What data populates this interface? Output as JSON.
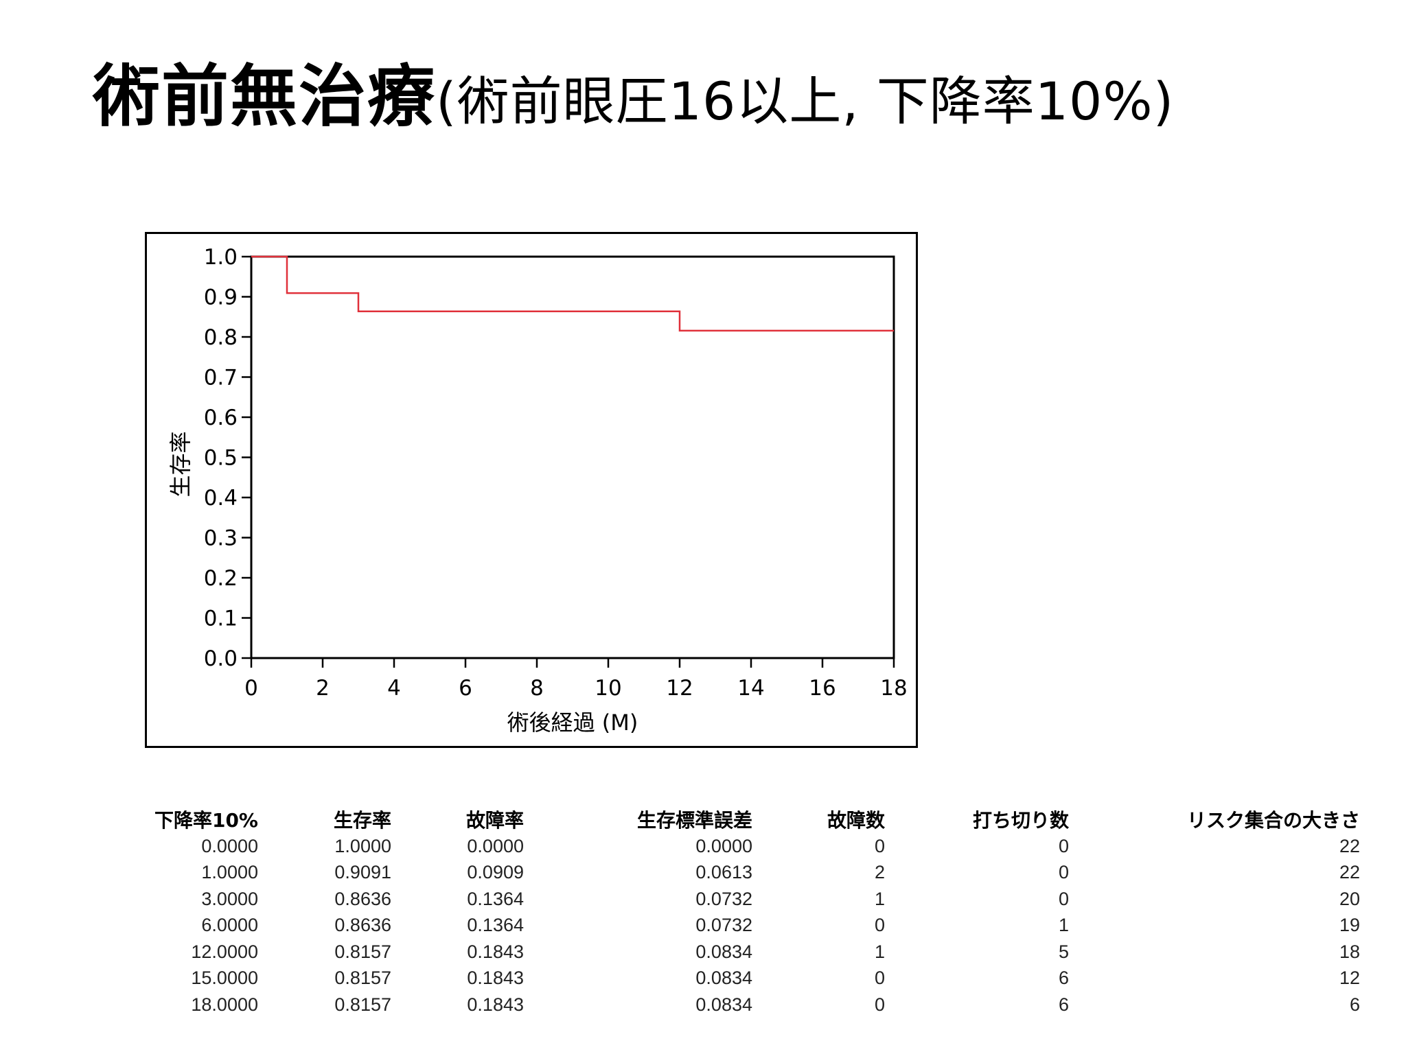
{
  "title": {
    "main": "術前無治療",
    "sub": "(術前眼圧16以上, 下降率10%)"
  },
  "chart_data": {
    "type": "line",
    "step": true,
    "xlabel": "術後経過 (M)",
    "ylabel": "生存率",
    "xlim": [
      0,
      18
    ],
    "ylim": [
      0,
      1
    ],
    "x_ticks": [
      "0",
      "2",
      "4",
      "6",
      "8",
      "10",
      "12",
      "14",
      "16",
      "18"
    ],
    "y_ticks": [
      "0.0",
      "0.1",
      "0.2",
      "0.3",
      "0.4",
      "0.5",
      "0.6",
      "0.7",
      "0.8",
      "0.9",
      "1.0"
    ],
    "grid": false,
    "line_color": "#e0303a",
    "series": [
      {
        "x": [
          0,
          1,
          3,
          12,
          18
        ],
        "y": [
          1.0,
          0.9091,
          0.8636,
          0.8157,
          0.8157
        ]
      }
    ]
  },
  "table": {
    "headers": [
      "下降率10%",
      "生存率",
      "故障率",
      "生存標準誤差",
      "故障数",
      "打ち切り数",
      "リスク集合の大きさ"
    ],
    "rows": [
      [
        "0.0000",
        "1.0000",
        "0.0000",
        "0.0000",
        "0",
        "0",
        "22"
      ],
      [
        "1.0000",
        "0.9091",
        "0.0909",
        "0.0613",
        "2",
        "0",
        "22"
      ],
      [
        "3.0000",
        "0.8636",
        "0.1364",
        "0.0732",
        "1",
        "0",
        "20"
      ],
      [
        "6.0000",
        "0.8636",
        "0.1364",
        "0.0732",
        "0",
        "1",
        "19"
      ],
      [
        "12.0000",
        "0.8157",
        "0.1843",
        "0.0834",
        "1",
        "5",
        "18"
      ],
      [
        "15.0000",
        "0.8157",
        "0.1843",
        "0.0834",
        "0",
        "6",
        "12"
      ],
      [
        "18.0000",
        "0.8157",
        "0.1843",
        "0.0834",
        "0",
        "6",
        "6"
      ]
    ]
  }
}
